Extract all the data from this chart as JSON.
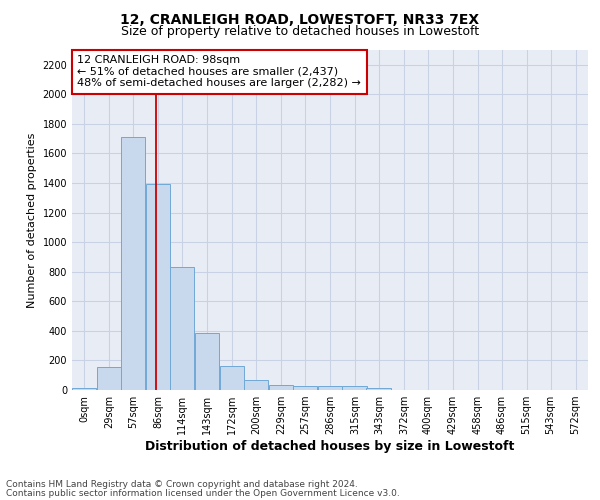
{
  "title": "12, CRANLEIGH ROAD, LOWESTOFT, NR33 7EX",
  "subtitle": "Size of property relative to detached houses in Lowestoft",
  "xlabel": "Distribution of detached houses by size in Lowestoft",
  "ylabel": "Number of detached properties",
  "bin_labels": [
    "0sqm",
    "29sqm",
    "57sqm",
    "86sqm",
    "114sqm",
    "143sqm",
    "172sqm",
    "200sqm",
    "229sqm",
    "257sqm",
    "286sqm",
    "315sqm",
    "343sqm",
    "372sqm",
    "400sqm",
    "429sqm",
    "458sqm",
    "486sqm",
    "515sqm",
    "543sqm",
    "572sqm"
  ],
  "bar_heights": [
    15,
    155,
    1710,
    1395,
    830,
    385,
    165,
    68,
    35,
    30,
    30,
    25,
    15,
    0,
    0,
    0,
    0,
    0,
    0,
    0,
    0
  ],
  "bin_width": 29,
  "bar_color": "#c8d9ee",
  "bar_edge_color": "#6fa8d6",
  "property_label": "12 CRANLEIGH ROAD: 98sqm",
  "annotation_line1": "← 51% of detached houses are smaller (2,437)",
  "annotation_line2": "48% of semi-detached houses are larger (2,282) →",
  "vline_color": "#cc0000",
  "vline_x": 98,
  "ylim": [
    0,
    2300
  ],
  "yticks": [
    0,
    200,
    400,
    600,
    800,
    1000,
    1200,
    1400,
    1600,
    1800,
    2000,
    2200
  ],
  "grid_color": "#c8d2e4",
  "bg_color": "#e8edf5",
  "footnote1": "Contains HM Land Registry data © Crown copyright and database right 2024.",
  "footnote2": "Contains public sector information licensed under the Open Government Licence v3.0.",
  "title_fontsize": 10,
  "subtitle_fontsize": 9,
  "xlabel_fontsize": 9,
  "ylabel_fontsize": 8,
  "tick_fontsize": 7,
  "annot_fontsize": 8,
  "footnote_fontsize": 6.5
}
